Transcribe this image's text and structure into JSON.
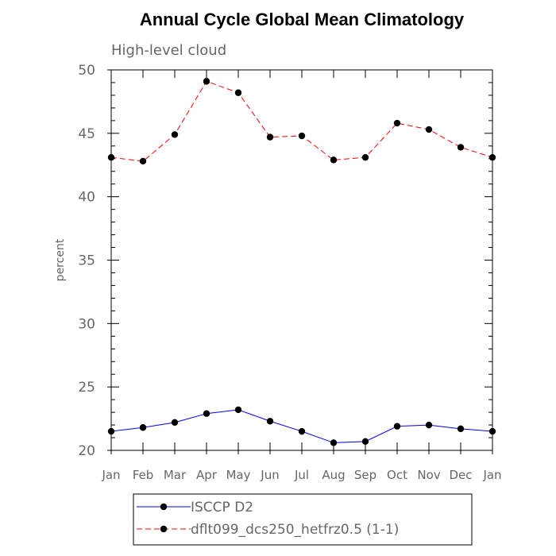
{
  "chart_data": {
    "type": "line",
    "title": "Annual Cycle Global Mean Climatology",
    "subtitle": "High-level cloud",
    "ylabel": "percent",
    "xlabel": "",
    "ylim": [
      20,
      50
    ],
    "yticks": [
      20,
      25,
      30,
      35,
      40,
      45,
      50
    ],
    "categories": [
      "Jan",
      "Feb",
      "Mar",
      "Apr",
      "May",
      "Jun",
      "Jul",
      "Aug",
      "Sep",
      "Oct",
      "Nov",
      "Dec",
      "Jan"
    ],
    "series": [
      {
        "name": "ISCCP D2",
        "color": "#0000ff",
        "dash": "solid",
        "values": [
          21.5,
          21.8,
          22.2,
          22.9,
          23.2,
          22.3,
          21.5,
          20.6,
          20.7,
          21.9,
          22.0,
          21.7,
          21.5
        ]
      },
      {
        "name": "dflt099_dcs250_hetfrz0.5 (1-1)",
        "color": "#ff0000",
        "dash": "dashed",
        "values": [
          43.1,
          42.8,
          44.9,
          49.1,
          48.2,
          44.7,
          44.8,
          42.9,
          43.1,
          45.8,
          45.3,
          43.9,
          43.1
        ]
      }
    ],
    "legend_position": "bottom-center",
    "grid": false
  }
}
